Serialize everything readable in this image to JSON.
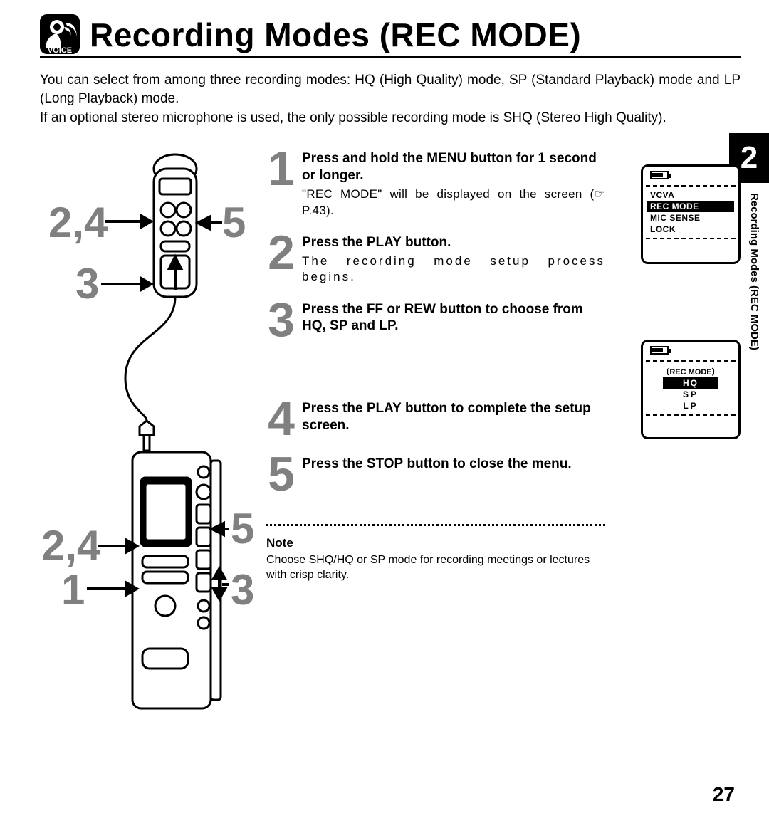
{
  "header": {
    "title": "Recording Modes (REC MODE)",
    "icon_label": "VOICE"
  },
  "intro": {
    "p1": "You can select from among three recording modes: HQ (High Quality) mode, SP (Standard Playback) mode and LP (Long Playback) mode.",
    "p2": "If an optional stereo microphone is used, the only possible recording mode is SHQ (Stereo High Quality)."
  },
  "diagram": {
    "top_left_label": "2,4",
    "top_right_label": "5",
    "top_below_label": "3",
    "bottom_left_top": "2,4",
    "bottom_left_bottom": "1",
    "bottom_right_top": "5",
    "bottom_right_bottom": "3"
  },
  "steps": [
    {
      "num": "1",
      "title_pre": "Press and hold the ",
      "title_btn": "MENU",
      "title_post": " button for 1 second or longer.",
      "desc": "\"REC MODE\" will be displayed on the screen (☞ P.43)."
    },
    {
      "num": "2",
      "title_pre": "Press the ",
      "title_btn": "PLAY",
      "title_post": " button.",
      "desc": "The recording mode setup process begins."
    },
    {
      "num": "3",
      "title_pre": "Press the ",
      "title_btn": "FF",
      "title_mid": " or ",
      "title_btn2": "REW",
      "title_post": " button to choose from HQ, SP and LP.",
      "desc": ""
    },
    {
      "num": "4",
      "title_pre": "Press the ",
      "title_btn": "PLAY",
      "title_post": " button to complete the setup screen.",
      "desc": ""
    },
    {
      "num": "5",
      "title_pre": "Press the ",
      "title_btn": "STOP",
      "title_post": " button to close the menu.",
      "desc": ""
    }
  ],
  "note": {
    "head": "Note",
    "body": "Choose SHQ/HQ or SP mode for recording meetings or lectures with crisp clarity."
  },
  "side": {
    "chapter_num": "2",
    "vertical_label": "Recording Modes (REC MODE)"
  },
  "lcd1": {
    "items": [
      "VCVA",
      "REC MODE",
      "MIC SENSE",
      "LOCK"
    ],
    "selected_index": 1
  },
  "lcd2": {
    "head": "〔REC MODE〕",
    "options": [
      "HQ",
      "SP",
      "LP"
    ],
    "selected_index": 0
  },
  "page_number": "27",
  "colors": {
    "text": "#000000",
    "background": "#ffffff",
    "grey_numerals": "#808080"
  }
}
